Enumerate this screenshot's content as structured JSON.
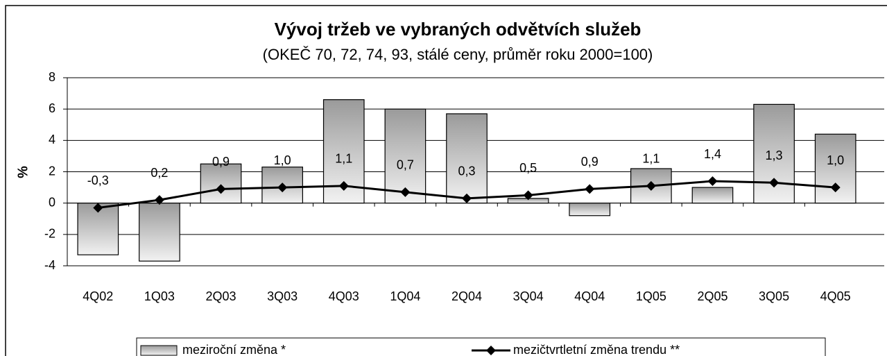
{
  "chart_data": {
    "type": "bar",
    "title": "Vývoj tržeb ve vybraných odvětvích služeb",
    "subtitle": "(OKEČ 70, 72, 74, 93, stálé ceny, průměr roku 2000=100)",
    "y_label": "%",
    "categories": [
      "4Q02",
      "1Q03",
      "2Q03",
      "3Q03",
      "4Q03",
      "1Q04",
      "2Q04",
      "3Q04",
      "4Q04",
      "1Q05",
      "2Q05",
      "3Q05",
      "4Q05"
    ],
    "series": [
      {
        "name": "meziroční změna *",
        "type": "bar",
        "color": "#9a9a9a",
        "values": [
          -3.3,
          -3.7,
          2.5,
          2.3,
          6.6,
          6.0,
          5.7,
          0.3,
          -0.8,
          2.2,
          1.0,
          6.3,
          4.4
        ]
      },
      {
        "name": "mezičtvrtletní změna trendu **",
        "type": "line",
        "color": "#000000",
        "values": [
          -0.3,
          0.2,
          0.9,
          1.0,
          1.1,
          0.7,
          0.3,
          0.5,
          0.9,
          1.1,
          1.4,
          1.3,
          1.0
        ],
        "value_labels": [
          "-0,3",
          "0,2",
          "0,9",
          "1,0",
          "1,1",
          "0,7",
          "0,3",
          "0,5",
          "0,9",
          "1,1",
          "1,4",
          "1,3",
          "1,0"
        ]
      }
    ],
    "ylim": [
      -4,
      8
    ],
    "yticks": [
      -4,
      -2,
      0,
      2,
      4,
      6,
      8
    ],
    "grid": true,
    "legend": "bottom"
  }
}
